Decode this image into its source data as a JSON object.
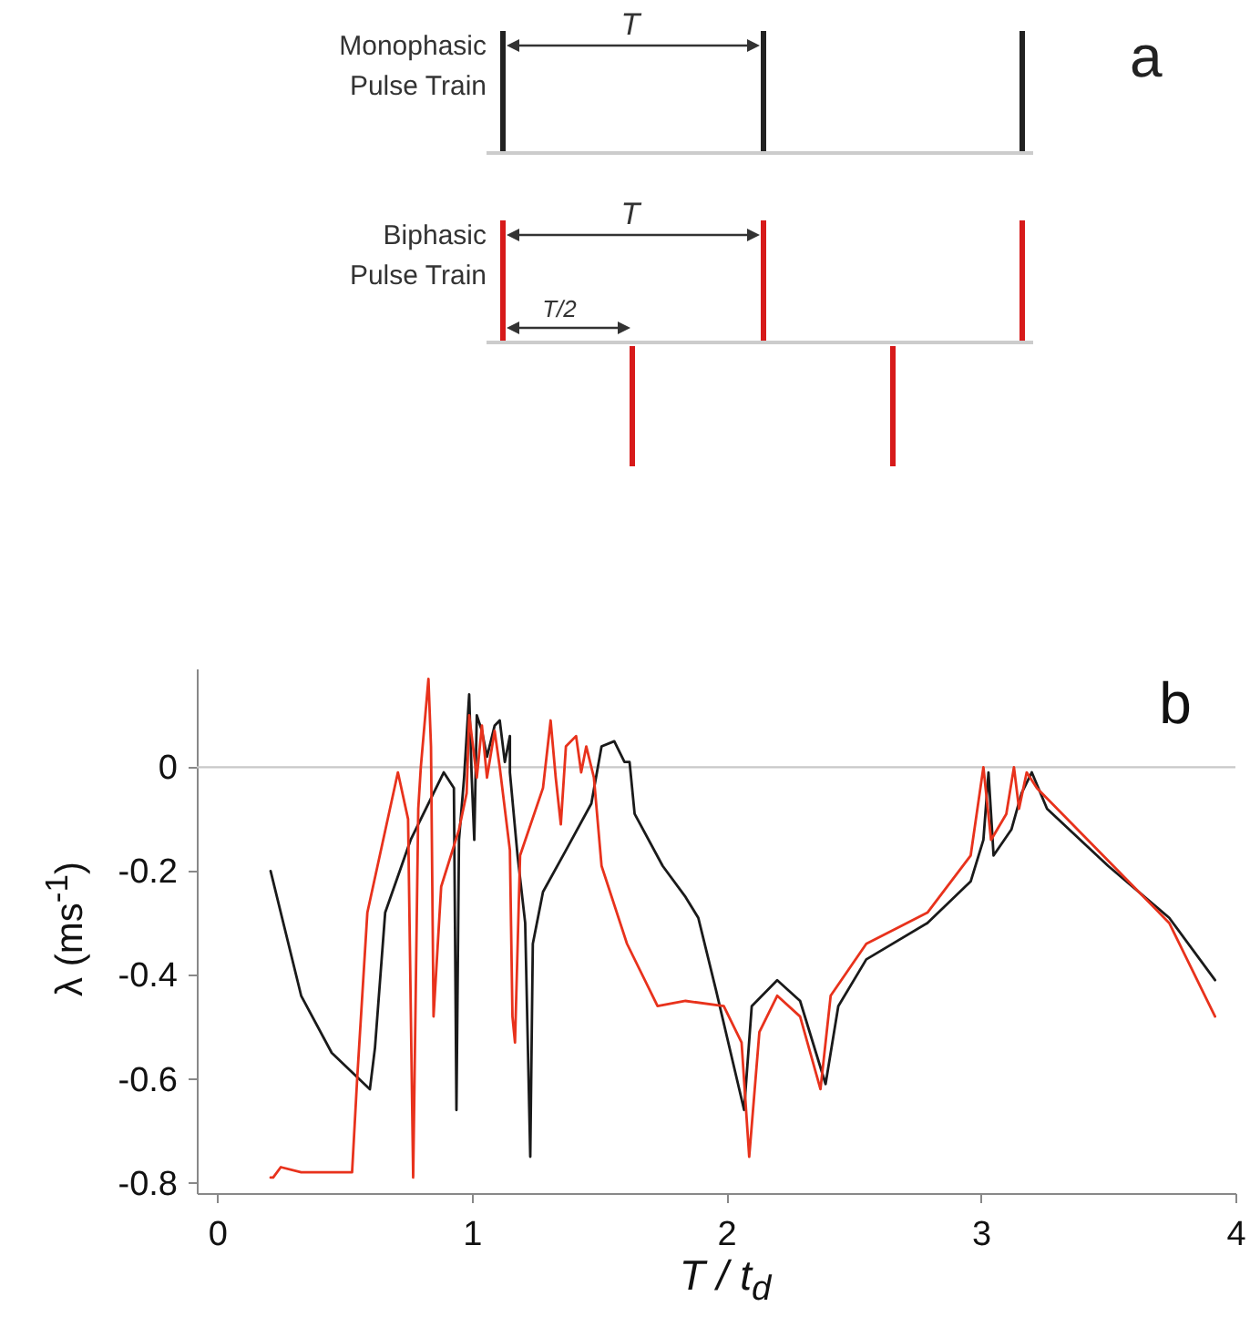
{
  "chart_data": [
    {
      "type": "other",
      "title": "a",
      "annotations": [
        "Monophasic Pulse Train",
        "Biphasic Pulse Train",
        "T",
        "T",
        "T/2"
      ]
    },
    {
      "type": "line",
      "title": "b",
      "xlabel": "T / t$_{d}$",
      "ylabel": "λ (ms$^{-1}$)",
      "xlim": [
        -0.08,
        4.0
      ],
      "ylim": [
        -0.82,
        0.19
      ],
      "xticks": [
        0,
        1,
        2,
        3,
        4
      ],
      "yticks": [
        -0.8,
        -0.6,
        -0.4,
        -0.2,
        0
      ],
      "grid": false,
      "ref_lines": [
        {
          "axis": "y",
          "value": 0,
          "color": "#c8c8c8"
        }
      ],
      "series": [
        {
          "color": "#1a1a1a",
          "x": [
            0.21,
            0.33,
            0.45,
            0.6,
            0.62,
            0.66,
            0.76,
            0.89,
            0.93,
            0.94,
            0.95,
            0.97,
            0.99,
            1.0,
            1.01,
            1.02,
            1.04,
            1.06,
            1.09,
            1.11,
            1.13,
            1.15,
            1.15,
            1.18,
            1.21,
            1.23,
            1.24,
            1.28,
            1.37,
            1.47,
            1.51,
            1.56,
            1.6,
            1.62,
            1.64,
            1.75,
            1.84,
            1.89,
            1.96,
            2.07,
            2.1,
            2.2,
            2.29,
            2.39,
            2.44,
            2.55,
            2.79,
            2.96,
            3.01,
            3.03,
            3.05,
            3.12,
            3.16,
            3.2,
            3.26,
            3.5,
            3.74,
            3.92
          ],
          "values": [
            -0.2,
            -0.44,
            -0.55,
            -0.62,
            -0.54,
            -0.28,
            -0.14,
            -0.01,
            -0.04,
            -0.66,
            -0.14,
            -0.02,
            0.14,
            -0.02,
            -0.14,
            0.1,
            0.07,
            0.02,
            0.08,
            0.09,
            0.01,
            0.06,
            -0.01,
            -0.17,
            -0.3,
            -0.75,
            -0.34,
            -0.24,
            -0.16,
            -0.07,
            0.04,
            0.05,
            0.01,
            0.01,
            -0.09,
            -0.19,
            -0.25,
            -0.29,
            -0.43,
            -0.66,
            -0.46,
            -0.41,
            -0.45,
            -0.61,
            -0.46,
            -0.37,
            -0.3,
            -0.22,
            -0.14,
            -0.01,
            -0.17,
            -0.12,
            -0.05,
            -0.01,
            -0.08,
            -0.19,
            -0.29,
            -0.41
          ]
        },
        {
          "color": "#e8321c",
          "x": [
            0.21,
            0.22,
            0.25,
            0.33,
            0.45,
            0.53,
            0.55,
            0.59,
            0.71,
            0.75,
            0.77,
            0.79,
            0.8,
            0.83,
            0.84,
            0.85,
            0.88,
            0.95,
            0.98,
            0.99,
            1.02,
            1.04,
            1.06,
            1.09,
            1.11,
            1.15,
            1.16,
            1.17,
            1.19,
            1.28,
            1.31,
            1.33,
            1.35,
            1.37,
            1.41,
            1.43,
            1.45,
            1.48,
            1.51,
            1.61,
            1.73,
            1.84,
            1.99,
            2.06,
            2.09,
            2.13,
            2.2,
            2.29,
            2.37,
            2.41,
            2.55,
            2.79,
            2.96,
            3.01,
            3.04,
            3.1,
            3.13,
            3.15,
            3.18,
            3.22,
            3.5,
            3.74,
            3.92
          ],
          "values": [
            -0.79,
            -0.79,
            -0.77,
            -0.78,
            -0.78,
            -0.78,
            -0.6,
            -0.28,
            -0.01,
            -0.1,
            -0.79,
            -0.08,
            0.0,
            0.17,
            0.04,
            -0.48,
            -0.23,
            -0.12,
            -0.05,
            0.1,
            -0.02,
            0.08,
            -0.02,
            0.07,
            0.0,
            -0.16,
            -0.48,
            -0.53,
            -0.17,
            -0.04,
            0.09,
            -0.02,
            -0.11,
            0.04,
            0.06,
            -0.01,
            0.04,
            -0.02,
            -0.19,
            -0.34,
            -0.46,
            -0.45,
            -0.46,
            -0.53,
            -0.75,
            -0.51,
            -0.44,
            -0.48,
            -0.62,
            -0.44,
            -0.34,
            -0.28,
            -0.17,
            0.0,
            -0.14,
            -0.09,
            0.0,
            -0.08,
            -0.01,
            -0.04,
            -0.18,
            -0.3,
            -0.48
          ]
        }
      ]
    }
  ]
}
